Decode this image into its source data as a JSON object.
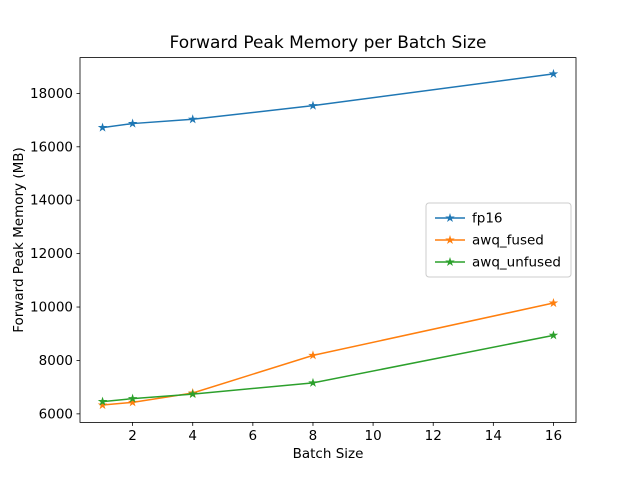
{
  "chart_data": {
    "type": "line",
    "title": "Forward Peak Memory per Batch Size",
    "xlabel": "Batch Size",
    "ylabel": "Forward Peak Memory (MB)",
    "x": [
      1,
      2,
      4,
      8,
      16
    ],
    "series": [
      {
        "name": "fp16",
        "color": "#1f77b4",
        "values": [
          16720,
          16870,
          17030,
          17540,
          18730
        ]
      },
      {
        "name": "awq_fused",
        "color": "#ff7f0e",
        "values": [
          6330,
          6430,
          6780,
          8190,
          10150
        ]
      },
      {
        "name": "awq_unfused",
        "color": "#2ca02c",
        "values": [
          6460,
          6570,
          6740,
          7160,
          8940
        ]
      }
    ],
    "xticks": [
      2,
      4,
      6,
      8,
      10,
      12,
      14,
      16
    ],
    "yticks": [
      6000,
      8000,
      10000,
      12000,
      14000,
      16000,
      18000
    ],
    "xlim": [
      0.25,
      16.75
    ],
    "ylim": [
      5680,
      19340
    ],
    "grid": false,
    "legend_position": "center right",
    "marker": "star",
    "background_color": "#ffffff",
    "axis_color": "#000000"
  }
}
